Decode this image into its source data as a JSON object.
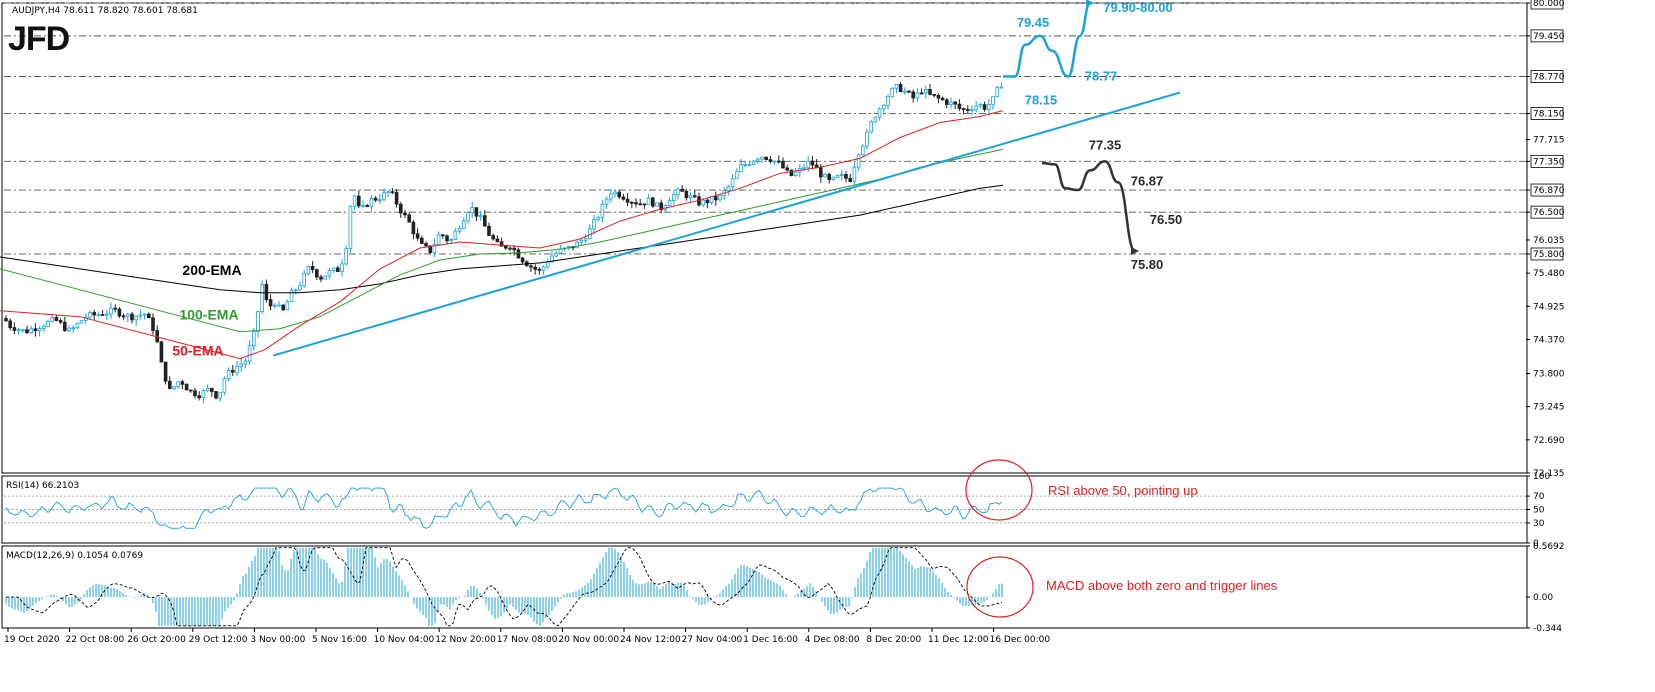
{
  "logo": "JFD",
  "colors": {
    "up_candle": "#1aa3d9",
    "down_candle": "#222222",
    "ema50": "#e02020",
    "ema100": "#2e9e2e",
    "ema200": "#000000",
    "trendline": "#1aa3d9",
    "bullish": "#1aa3d9",
    "bearish": "#333333",
    "note": "#e02020",
    "grid": "#555555"
  },
  "chart_data": [
    {
      "type": "candlestick",
      "header": "AUDJPY,H4  78.611 78.820 78.601 78.681",
      "ylim": [
        72.135,
        80.0
      ],
      "y_ticks": [
        "80.000",
        "79.450",
        "78.770",
        "78.150",
        "77.715",
        "77.350",
        "76.870",
        "76.500",
        "76.035",
        "75.800",
        "75.480",
        "74.925",
        "74.370",
        "73.800",
        "73.245",
        "72.690",
        "72.135"
      ],
      "x_ticks": [
        "19 Oct 2020",
        "22 Oct 08:00",
        "26 Oct 20:00",
        "29 Oct 12:00",
        "3 Nov 00:00",
        "5 Nov 16:00",
        "10 Nov 04:00",
        "12 Nov 20:00",
        "17 Nov 08:00",
        "20 Nov 00:00",
        "24 Nov 12:00",
        "27 Nov 04:00",
        "1 Dec 16:00",
        "4 Dec 08:00",
        "8 Dec 20:00",
        "11 Dec 12:00",
        "16 Dec 00:00"
      ],
      "price_path": [
        [
          0,
          74.8
        ],
        [
          10,
          74.6
        ],
        [
          25,
          74.5
        ],
        [
          40,
          74.6
        ],
        [
          55,
          74.7
        ],
        [
          70,
          74.5
        ],
        [
          85,
          74.75
        ],
        [
          100,
          74.8
        ],
        [
          115,
          74.85
        ],
        [
          130,
          74.75
        ],
        [
          145,
          74.8
        ],
        [
          155,
          74.5
        ],
        [
          162,
          73.9
        ],
        [
          170,
          73.5
        ],
        [
          180,
          73.7
        ],
        [
          190,
          73.5
        ],
        [
          200,
          73.45
        ],
        [
          210,
          73.55
        ],
        [
          218,
          73.4
        ],
        [
          225,
          73.75
        ],
        [
          235,
          73.9
        ],
        [
          245,
          74.0
        ],
        [
          255,
          74.5
        ],
        [
          262,
          75.3
        ],
        [
          268,
          74.9
        ],
        [
          275,
          75.0
        ],
        [
          282,
          74.8
        ],
        [
          290,
          75.1
        ],
        [
          300,
          75.3
        ],
        [
          310,
          75.6
        ],
        [
          320,
          75.4
        ],
        [
          330,
          75.5
        ],
        [
          340,
          75.55
        ],
        [
          347,
          76.0
        ],
        [
          352,
          76.9
        ],
        [
          360,
          76.5
        ],
        [
          370,
          76.7
        ],
        [
          380,
          76.75
        ],
        [
          390,
          76.85
        ],
        [
          400,
          76.55
        ],
        [
          410,
          76.3
        ],
        [
          420,
          75.95
        ],
        [
          430,
          75.85
        ],
        [
          440,
          76.15
        ],
        [
          450,
          76.0
        ],
        [
          460,
          76.3
        ],
        [
          470,
          76.6
        ],
        [
          480,
          76.4
        ],
        [
          490,
          76.1
        ],
        [
          500,
          75.9
        ],
        [
          510,
          75.95
        ],
        [
          520,
          75.75
        ],
        [
          530,
          75.6
        ],
        [
          540,
          75.5
        ],
        [
          550,
          75.75
        ],
        [
          560,
          75.85
        ],
        [
          570,
          75.9
        ],
        [
          580,
          76.0
        ],
        [
          590,
          76.2
        ],
        [
          600,
          76.5
        ],
        [
          610,
          76.85
        ],
        [
          620,
          76.8
        ],
        [
          630,
          76.7
        ],
        [
          640,
          76.65
        ],
        [
          650,
          76.7
        ],
        [
          660,
          76.55
        ],
        [
          670,
          76.75
        ],
        [
          680,
          76.85
        ],
        [
          690,
          76.75
        ],
        [
          700,
          76.65
        ],
        [
          710,
          76.7
        ],
        [
          720,
          76.75
        ],
        [
          730,
          76.95
        ],
        [
          740,
          77.25
        ],
        [
          750,
          77.35
        ],
        [
          760,
          77.45
        ],
        [
          770,
          77.4
        ],
        [
          780,
          77.3
        ],
        [
          790,
          77.1
        ],
        [
          800,
          77.2
        ],
        [
          810,
          77.35
        ],
        [
          820,
          77.15
        ],
        [
          830,
          77.0
        ],
        [
          840,
          77.1
        ],
        [
          850,
          77.05
        ],
        [
          858,
          77.5
        ],
        [
          866,
          77.75
        ],
        [
          874,
          78.1
        ],
        [
          882,
          78.3
        ],
        [
          890,
          78.5
        ],
        [
          898,
          78.6
        ],
        [
          906,
          78.5
        ],
        [
          914,
          78.4
        ],
        [
          922,
          78.55
        ],
        [
          930,
          78.45
        ],
        [
          938,
          78.4
        ],
        [
          946,
          78.35
        ],
        [
          954,
          78.3
        ],
        [
          962,
          78.2
        ],
        [
          970,
          78.25
        ],
        [
          978,
          78.3
        ],
        [
          986,
          78.25
        ],
        [
          994,
          78.4
        ],
        [
          1000,
          78.65
        ]
      ],
      "ema50": [
        [
          0,
          74.85
        ],
        [
          80,
          74.75
        ],
        [
          160,
          74.4
        ],
        [
          240,
          74.05
        ],
        [
          265,
          74.2
        ],
        [
          300,
          74.6
        ],
        [
          340,
          75.0
        ],
        [
          380,
          75.55
        ],
        [
          420,
          75.9
        ],
        [
          460,
          76.0
        ],
        [
          500,
          75.95
        ],
        [
          540,
          75.9
        ],
        [
          580,
          76.05
        ],
        [
          620,
          76.35
        ],
        [
          660,
          76.55
        ],
        [
          700,
          76.7
        ],
        [
          740,
          76.9
        ],
        [
          780,
          77.15
        ],
        [
          820,
          77.25
        ],
        [
          860,
          77.4
        ],
        [
          900,
          77.75
        ],
        [
          940,
          78.0
        ],
        [
          980,
          78.1
        ],
        [
          1003,
          78.2
        ]
      ],
      "ema100": [
        [
          0,
          75.55
        ],
        [
          80,
          75.2
        ],
        [
          160,
          74.85
        ],
        [
          240,
          74.5
        ],
        [
          280,
          74.55
        ],
        [
          320,
          74.75
        ],
        [
          360,
          75.1
        ],
        [
          400,
          75.45
        ],
        [
          440,
          75.7
        ],
        [
          480,
          75.8
        ],
        [
          520,
          75.82
        ],
        [
          560,
          75.88
        ],
        [
          600,
          76.0
        ],
        [
          640,
          76.15
        ],
        [
          680,
          76.3
        ],
        [
          720,
          76.45
        ],
        [
          760,
          76.6
        ],
        [
          800,
          76.75
        ],
        [
          840,
          76.9
        ],
        [
          880,
          77.05
        ],
        [
          920,
          77.25
        ],
        [
          960,
          77.4
        ],
        [
          1003,
          77.55
        ]
      ],
      "ema200": [
        [
          0,
          75.75
        ],
        [
          80,
          75.55
        ],
        [
          160,
          75.35
        ],
        [
          220,
          75.2
        ],
        [
          260,
          75.15
        ],
        [
          300,
          75.15
        ],
        [
          340,
          75.2
        ],
        [
          380,
          75.3
        ],
        [
          420,
          75.45
        ],
        [
          460,
          75.55
        ],
        [
          500,
          75.6
        ],
        [
          540,
          75.65
        ],
        [
          580,
          75.75
        ],
        [
          620,
          75.85
        ],
        [
          660,
          75.95
        ],
        [
          700,
          76.05
        ],
        [
          740,
          76.15
        ],
        [
          780,
          76.25
        ],
        [
          820,
          76.35
        ],
        [
          860,
          76.45
        ],
        [
          900,
          76.6
        ],
        [
          940,
          76.75
        ],
        [
          980,
          76.9
        ],
        [
          1003,
          76.95
        ]
      ],
      "trendline": [
        [
          273,
          74.1
        ],
        [
          1180,
          78.5
        ]
      ],
      "levels": [
        80.0,
        79.45,
        78.77,
        78.15,
        77.35,
        76.87,
        76.5,
        75.8
      ],
      "bullish_path": [
        [
          1003,
          78.77
        ],
        [
          1015,
          78.77
        ],
        [
          1025,
          79.3
        ],
        [
          1040,
          79.45
        ],
        [
          1052,
          79.2
        ],
        [
          1068,
          78.77
        ],
        [
          1080,
          79.45
        ],
        [
          1090,
          80.0
        ]
      ],
      "bearish_path": [
        [
          1042,
          77.32
        ],
        [
          1055,
          77.3
        ],
        [
          1065,
          76.9
        ],
        [
          1078,
          76.87
        ],
        [
          1090,
          77.2
        ],
        [
          1105,
          77.35
        ],
        [
          1118,
          77.0
        ],
        [
          1135,
          75.85
        ]
      ],
      "annotations": [
        {
          "text": "79.45",
          "x": 1033,
          "y": 79.6,
          "style": "blue"
        },
        {
          "text": "79.90-80.00",
          "x": 1138,
          "y": 79.85,
          "style": "blue"
        },
        {
          "text": "78.77",
          "x": 1101,
          "y": 78.7,
          "style": "blue"
        },
        {
          "text": "78.15",
          "x": 1041,
          "y": 78.3,
          "style": "blue"
        },
        {
          "text": "77.35",
          "x": 1105,
          "y": 77.55,
          "style": "dark"
        },
        {
          "text": "76.87",
          "x": 1147,
          "y": 76.95,
          "style": "dark"
        },
        {
          "text": "76.50",
          "x": 1166,
          "y": 76.3,
          "style": "dark"
        },
        {
          "text": "75.80",
          "x": 1147,
          "y": 75.55,
          "style": "dark"
        }
      ],
      "ema_labels": [
        {
          "text": "200-EMA",
          "x": 212,
          "y": 75.45,
          "color": "#000000"
        },
        {
          "text": "100-EMA",
          "x": 209,
          "y": 74.7,
          "color": "#2e9e2e"
        },
        {
          "text": "50-EMA",
          "x": 198,
          "y": 74.1,
          "color": "#e02020"
        }
      ]
    },
    {
      "type": "line",
      "header": "RSI(14) 66.2103",
      "ylim": [
        0,
        100
      ],
      "y_ticks": [
        "100",
        "70",
        "50",
        "30",
        "0"
      ],
      "guide_levels": [
        70,
        50,
        30
      ],
      "note": "RSI above 50, pointing up"
    },
    {
      "type": "bar+line",
      "header": "MACD(12,26,9) 0.1054 0.0769",
      "ylim": [
        -0.344,
        0.5692
      ],
      "y_ticks": [
        "0.5692",
        "0.00",
        "-0.344"
      ],
      "note": "MACD above both zero and trigger lines"
    }
  ]
}
